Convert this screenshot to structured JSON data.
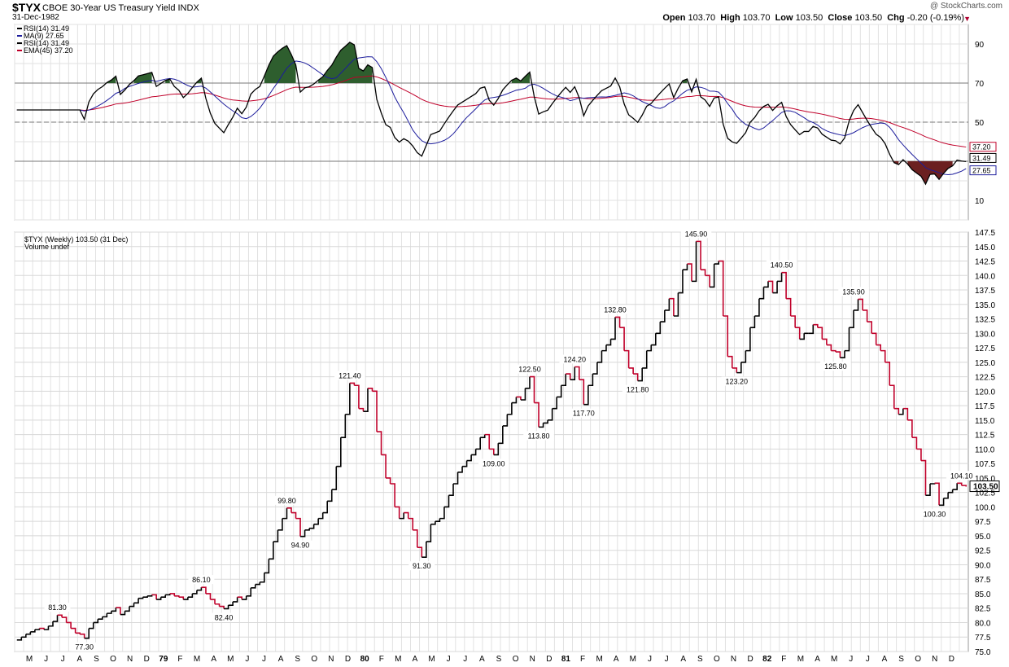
{
  "header": {
    "symbol": "$TYX",
    "description": "CBOE 30-Year US Treasury Yield INDX",
    "date": "31-Dec-1982",
    "brand": "@ StockCharts.com",
    "open_label": "Open",
    "open": "103.70",
    "high_label": "High",
    "high": "103.70",
    "low_label": "Low",
    "low": "103.50",
    "close_label": "Close",
    "close": "103.50",
    "chg_label": "Chg",
    "chg": "-0.20 (-0.19%)"
  },
  "rsi_panel": {
    "legend": [
      "RSI(14) 31.49",
      "MA(9) 27.65",
      "RSI(14) 31.49",
      "EMA(45) 37.20"
    ],
    "y_ticks": [
      90,
      70,
      50,
      10
    ],
    "value_tags": [
      "37.20",
      "31.49",
      "27.65"
    ]
  },
  "price_panel": {
    "legend": [
      "$TYX (Weekly) 103.50 (31 Dec)",
      "Volume undef"
    ],
    "y_ticks": [
      "147.5",
      "145.0",
      "142.5",
      "140.0",
      "137.5",
      "135.0",
      "132.5",
      "130.0",
      "127.5",
      "125.0",
      "122.5",
      "120.0",
      "117.5",
      "115.0",
      "112.5",
      "110.0",
      "107.5",
      "105.0",
      "102.5",
      "100.0",
      "97.5",
      "95.0",
      "92.5",
      "90.0",
      "87.5",
      "85.0",
      "82.5",
      "80.0",
      "77.5",
      "75.0"
    ],
    "last_tag": "103.50"
  },
  "x_axis_labels": [
    "M",
    "J",
    "J",
    "A",
    "S",
    "O",
    "N",
    "D",
    "79",
    "F",
    "M",
    "A",
    "M",
    "J",
    "J",
    "A",
    "S",
    "O",
    "N",
    "D",
    "80",
    "F",
    "M",
    "A",
    "M",
    "J",
    "J",
    "A",
    "S",
    "O",
    "N",
    "D",
    "81",
    "F",
    "M",
    "A",
    "M",
    "J",
    "J",
    "A",
    "S",
    "O",
    "N",
    "D",
    "82",
    "F",
    "M",
    "A",
    "M",
    "J",
    "J",
    "A",
    "S",
    "O",
    "N",
    "D"
  ],
  "colors": {
    "up": "#000000",
    "down": "#c0002a",
    "rsi_fill_high": "#2e5e2e",
    "rsi_fill_low": "#6b2020",
    "ma": "#1c1c9c",
    "ema": "#c0002a"
  },
  "chart_data": {
    "type": "line",
    "title": "$TYX CBOE 30-Year US Treasury Yield INDX",
    "x_range": [
      "1978-05",
      "1982-12"
    ],
    "ylim": [
      75.0,
      147.5
    ],
    "series": [
      {
        "name": "$TYX (Weekly)",
        "values": [
          77.0,
          77.5,
          78.0,
          78.4,
          78.8,
          79.0,
          78.8,
          79.4,
          80.2,
          81.3,
          80.9,
          80.0,
          79.0,
          78.2,
          78.0,
          77.3,
          79.0,
          80.0,
          80.6,
          81.0,
          81.6,
          82.0,
          82.6,
          81.4,
          82.0,
          82.8,
          83.4,
          84.2,
          84.4,
          84.6,
          84.8,
          84.0,
          84.4,
          84.8,
          85.0,
          84.6,
          84.4,
          84.0,
          84.4,
          85.0,
          85.6,
          86.1,
          85.0,
          84.0,
          83.2,
          82.8,
          82.4,
          83.0,
          83.6,
          84.4,
          84.0,
          84.6,
          86.0,
          86.6,
          87.0,
          88.6,
          91.0,
          94.0,
          96.0,
          98.0,
          99.8,
          99.0,
          98.0,
          94.9,
          96.0,
          96.3,
          97.0,
          98.0,
          99.0,
          101.0,
          103.0,
          107.0,
          112.0,
          116.0,
          121.4,
          121.0,
          117.0,
          116.5,
          120.5,
          120.0,
          113.0,
          109.0,
          105.0,
          104.0,
          100.0,
          98.0,
          99.0,
          98.0,
          96.0,
          93.0,
          91.3,
          94.0,
          97.0,
          97.5,
          98.0,
          100.0,
          102.0,
          104.0,
          106.0,
          107.0,
          108.0,
          109.0,
          110.0,
          112.0,
          112.5,
          110.0,
          109.0,
          111.0,
          114.0,
          116.0,
          118.0,
          119.0,
          118.5,
          120.5,
          122.5,
          118.0,
          113.8,
          114.5,
          115.0,
          117.0,
          119.0,
          121.0,
          123.0,
          122.0,
          124.2,
          122.0,
          117.7,
          121.0,
          123.0,
          125.0,
          127.0,
          128.0,
          129.0,
          132.8,
          131.0,
          127.0,
          124.0,
          123.0,
          121.8,
          124.0,
          127.0,
          128.0,
          130.0,
          132.0,
          134.0,
          136.0,
          133.0,
          137.0,
          141.0,
          142.0,
          139.0,
          145.9,
          141.0,
          140.0,
          138.0,
          142.0,
          142.5,
          133.0,
          126.0,
          124.0,
          123.2,
          125.0,
          127.0,
          131.0,
          133.0,
          136.0,
          138.0,
          139.0,
          137.0,
          139.0,
          140.5,
          136.0,
          133.0,
          131.0,
          129.0,
          130.0,
          130.0,
          131.5,
          131.0,
          129.0,
          128.0,
          127.0,
          126.8,
          125.8,
          127.0,
          131.0,
          134.0,
          135.9,
          134.0,
          132.0,
          130.0,
          128.0,
          127.0,
          125.0,
          121.0,
          117.0,
          116.0,
          117.0,
          115.0,
          112.0,
          110.0,
          108.0,
          102.0,
          104.0,
          104.1,
          100.3,
          101.5,
          102.5,
          103.0,
          104.1,
          103.7,
          103.5
        ]
      }
    ],
    "price_annotations": [
      {
        "label": "81.30",
        "week": 9,
        "value": 81.3,
        "pos": "above"
      },
      {
        "label": "77.30",
        "week": 15,
        "value": 77.3,
        "pos": "below"
      },
      {
        "label": "86.10",
        "week": 41,
        "value": 86.1,
        "pos": "above"
      },
      {
        "label": "82.40",
        "week": 46,
        "value": 82.4,
        "pos": "below"
      },
      {
        "label": "99.80",
        "week": 60,
        "value": 99.8,
        "pos": "above"
      },
      {
        "label": "94.90",
        "week": 63,
        "value": 94.9,
        "pos": "below"
      },
      {
        "label": "121.40",
        "week": 74,
        "value": 121.4,
        "pos": "above"
      },
      {
        "label": "91.30",
        "week": 90,
        "value": 91.3,
        "pos": "below"
      },
      {
        "label": "109.00",
        "week": 106,
        "value": 109.0,
        "pos": "below"
      },
      {
        "label": "122.50",
        "week": 114,
        "value": 122.5,
        "pos": "above"
      },
      {
        "label": "113.80",
        "week": 116,
        "value": 113.8,
        "pos": "below"
      },
      {
        "label": "124.20",
        "week": 124,
        "value": 124.2,
        "pos": "above"
      },
      {
        "label": "117.70",
        "week": 126,
        "value": 117.7,
        "pos": "below"
      },
      {
        "label": "132.80",
        "week": 133,
        "value": 132.8,
        "pos": "above"
      },
      {
        "label": "121.80",
        "week": 138,
        "value": 121.8,
        "pos": "below"
      },
      {
        "label": "145.90",
        "week": 151,
        "value": 145.9,
        "pos": "above"
      },
      {
        "label": "123.20",
        "week": 160,
        "value": 123.2,
        "pos": "below"
      },
      {
        "label": "140.50",
        "week": 170,
        "value": 140.5,
        "pos": "above"
      },
      {
        "label": "125.80",
        "week": 182,
        "value": 125.8,
        "pos": "below"
      },
      {
        "label": "135.90",
        "week": 186,
        "value": 135.9,
        "pos": "above"
      },
      {
        "label": "104.10",
        "week": 210,
        "value": 104.1,
        "pos": "above"
      },
      {
        "label": "100.30",
        "week": 204,
        "value": 100.3,
        "pos": "below"
      }
    ],
    "rsi_ylim": [
      0,
      100
    ],
    "rsi_reference_lines": [
      70,
      50,
      30
    ]
  }
}
